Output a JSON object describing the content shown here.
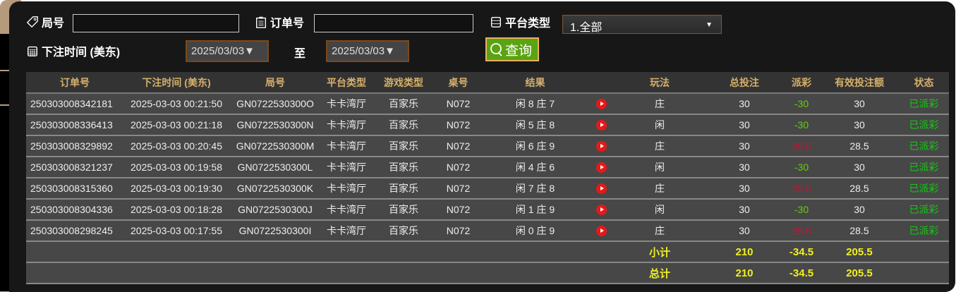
{
  "filters": {
    "round_label": "局号",
    "round_value": "",
    "order_label": "订单号",
    "order_value": "",
    "platform_label": "平台类型",
    "platform_value": "1.全部",
    "time_label": "下注时间 (美东)",
    "date_from": "2025/03/03▼",
    "to_label": "至",
    "date_to": "2025/03/03▼",
    "query_label": "查询"
  },
  "table": {
    "headers": [
      "订单号",
      "下注时间 (美东)",
      "局号",
      "平台类型",
      "游戏类型",
      "桌号",
      "结果",
      "",
      "玩法",
      "总投注",
      "派彩",
      "有效投注额",
      "状态"
    ],
    "rows": [
      {
        "order": "250303008342181",
        "time": "2025-03-03 00:21:50",
        "round": "GN0722530300O",
        "platform": "卡卡湾厅",
        "game": "百家乐",
        "table": "N072",
        "result": "闲 8 庄 7",
        "play": "庄",
        "bet": "30",
        "payout": "-30",
        "valid": "30",
        "status": "已派彩"
      },
      {
        "order": "250303008336413",
        "time": "2025-03-03 00:21:18",
        "round": "GN0722530300N",
        "platform": "卡卡湾厅",
        "game": "百家乐",
        "table": "N072",
        "result": "闲 5 庄 8",
        "play": "闲",
        "bet": "30",
        "payout": "-30",
        "valid": "30",
        "status": "已派彩"
      },
      {
        "order": "250303008329892",
        "time": "2025-03-03 00:20:45",
        "round": "GN0722530300M",
        "platform": "卡卡湾厅",
        "game": "百家乐",
        "table": "N072",
        "result": "闲 6 庄 9",
        "play": "庄",
        "bet": "30",
        "payout": "28.5",
        "valid": "28.5",
        "status": "已派彩"
      },
      {
        "order": "250303008321237",
        "time": "2025-03-03 00:19:58",
        "round": "GN0722530300L",
        "platform": "卡卡湾厅",
        "game": "百家乐",
        "table": "N072",
        "result": "闲 4 庄 6",
        "play": "闲",
        "bet": "30",
        "payout": "-30",
        "valid": "30",
        "status": "已派彩"
      },
      {
        "order": "250303008315360",
        "time": "2025-03-03 00:19:30",
        "round": "GN0722530300K",
        "platform": "卡卡湾厅",
        "game": "百家乐",
        "table": "N072",
        "result": "闲 7 庄 8",
        "play": "庄",
        "bet": "30",
        "payout": "28.5",
        "valid": "28.5",
        "status": "已派彩"
      },
      {
        "order": "250303008304336",
        "time": "2025-03-03 00:18:28",
        "round": "GN0722530300J",
        "platform": "卡卡湾厅",
        "game": "百家乐",
        "table": "N072",
        "result": "闲 1 庄 9",
        "play": "闲",
        "bet": "30",
        "payout": "-30",
        "valid": "30",
        "status": "已派彩"
      },
      {
        "order": "250303008298245",
        "time": "2025-03-03 00:17:55",
        "round": "GN0722530300I",
        "platform": "卡卡湾厅",
        "game": "百家乐",
        "table": "N072",
        "result": "闲 0 庄 9",
        "play": "庄",
        "bet": "30",
        "payout": "28.5",
        "valid": "28.5",
        "status": "已派彩"
      }
    ],
    "subtotal": {
      "label": "小计",
      "bet": "210",
      "payout": "-34.5",
      "valid": "205.5"
    },
    "total": {
      "label": "总计",
      "bet": "210",
      "payout": "-34.5",
      "valid": "205.5"
    }
  },
  "colors": {
    "loss": "#66cc11",
    "win": "#c8103a",
    "status": "#11cc11",
    "header": "#d6b06a",
    "total": "#f0f020"
  }
}
